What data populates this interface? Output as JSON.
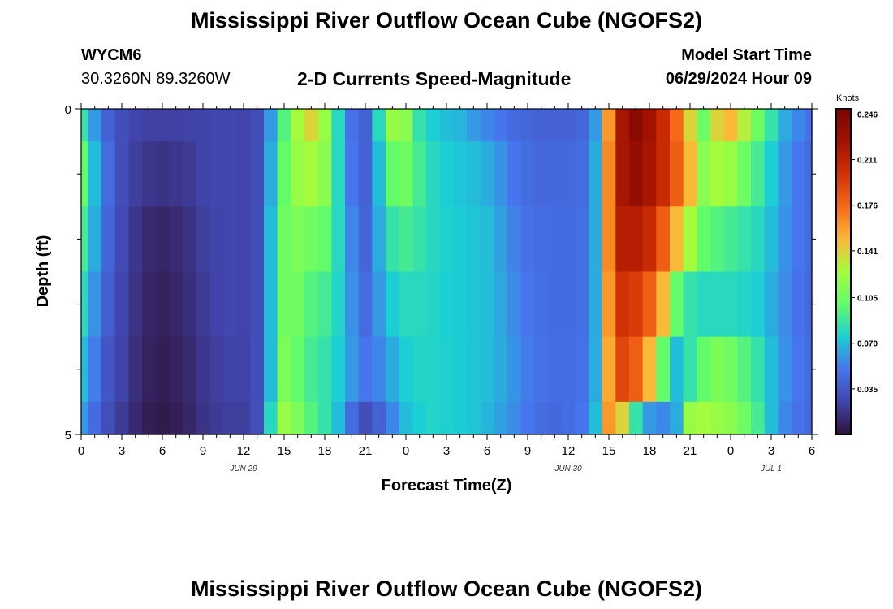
{
  "header": {
    "title": "Mississippi River Outflow Ocean Cube (NGOFS2)",
    "station_id": "WYCM6",
    "coordinates": "30.3260N  89.3260W",
    "subtitle": "2-D Currents Speed-Magnitude",
    "model_start_label": "Model Start Time",
    "model_start_value": "06/29/2024 Hour 09"
  },
  "footer": {
    "title": "Mississippi River Outflow Ocean Cube (NGOFS2)"
  },
  "chart_data": {
    "type": "heatmap",
    "title": "2-D Currents Speed-Magnitude",
    "xlabel": "Forecast Time(Z)",
    "ylabel": "Depth (ft)",
    "x_tick_labels": [
      "0",
      "3",
      "6",
      "9",
      "12",
      "15",
      "18",
      "21",
      "0",
      "3",
      "6",
      "9",
      "12",
      "15",
      "18",
      "21",
      "0",
      "3",
      "6"
    ],
    "date_labels": [
      "JUN 29",
      "JUN 30",
      "JUL 1"
    ],
    "y_tick_labels": [
      "0",
      "5"
    ],
    "ylim": [
      0,
      5
    ],
    "colorbar": {
      "unit": "Knots",
      "tick_labels": [
        "0.246",
        "0.211",
        "0.176",
        "0.141",
        "0.105",
        "0.070",
        "0.035"
      ],
      "range": [
        0,
        0.25
      ]
    },
    "x_hours": [
      0,
      1,
      2,
      3,
      4,
      5,
      6,
      7,
      8,
      9,
      10,
      11,
      12,
      13,
      14,
      15,
      16,
      17,
      18,
      19,
      20,
      21,
      22,
      23,
      24,
      25,
      26,
      27,
      28,
      29,
      30,
      31,
      32,
      33,
      34,
      35,
      36,
      37,
      38,
      39,
      40,
      41,
      42,
      43,
      44,
      45,
      46,
      47,
      48,
      49,
      50,
      51,
      52,
      53,
      54
    ],
    "depth_rows": [
      {
        "depth_range": [
          0.0,
          0.5
        ],
        "values": [
          0.085,
          0.06,
          0.04,
          0.03,
          0.025,
          0.023,
          0.023,
          0.023,
          0.024,
          0.025,
          0.026,
          0.026,
          0.025,
          0.03,
          0.06,
          0.095,
          0.125,
          0.14,
          0.12,
          0.08,
          0.048,
          0.04,
          0.08,
          0.12,
          0.115,
          0.085,
          0.075,
          0.07,
          0.068,
          0.06,
          0.055,
          0.05,
          0.045,
          0.042,
          0.04,
          0.04,
          0.04,
          0.042,
          0.06,
          0.16,
          0.222,
          0.24,
          0.225,
          0.205,
          0.175,
          0.14,
          0.105,
          0.14,
          0.15,
          0.13,
          0.105,
          0.085,
          0.065,
          0.055,
          0.048
        ]
      },
      {
        "depth_range": [
          0.5,
          1.5
        ],
        "values": [
          0.1,
          0.07,
          0.045,
          0.03,
          0.022,
          0.018,
          0.016,
          0.018,
          0.02,
          0.024,
          0.026,
          0.026,
          0.025,
          0.03,
          0.065,
          0.1,
          0.12,
          0.125,
          0.115,
          0.08,
          0.05,
          0.04,
          0.07,
          0.1,
          0.105,
          0.09,
          0.08,
          0.075,
          0.072,
          0.07,
          0.065,
          0.058,
          0.05,
          0.046,
          0.044,
          0.044,
          0.044,
          0.046,
          0.065,
          0.165,
          0.222,
          0.232,
          0.222,
          0.205,
          0.18,
          0.15,
          0.115,
          0.125,
          0.12,
          0.105,
          0.09,
          0.075,
          0.06,
          0.05,
          0.045
        ]
      },
      {
        "depth_range": [
          1.5,
          2.5
        ],
        "values": [
          0.09,
          0.065,
          0.042,
          0.028,
          0.018,
          0.012,
          0.01,
          0.012,
          0.016,
          0.022,
          0.025,
          0.026,
          0.025,
          0.03,
          0.07,
          0.105,
          0.11,
          0.105,
          0.1,
          0.08,
          0.055,
          0.042,
          0.065,
          0.085,
          0.09,
          0.085,
          0.08,
          0.076,
          0.074,
          0.072,
          0.07,
          0.062,
          0.054,
          0.048,
          0.046,
          0.045,
          0.045,
          0.047,
          0.065,
          0.165,
          0.215,
          0.215,
          0.205,
          0.18,
          0.15,
          0.125,
          0.1,
          0.095,
          0.09,
          0.085,
          0.08,
          0.07,
          0.058,
          0.05,
          0.045
        ]
      },
      {
        "depth_range": [
          2.5,
          3.5
        ],
        "values": [
          0.08,
          0.058,
          0.038,
          0.026,
          0.016,
          0.01,
          0.008,
          0.01,
          0.014,
          0.02,
          0.024,
          0.026,
          0.025,
          0.03,
          0.07,
          0.105,
          0.105,
          0.095,
          0.09,
          0.078,
          0.058,
          0.045,
          0.06,
          0.075,
          0.08,
          0.08,
          0.078,
          0.075,
          0.074,
          0.072,
          0.07,
          0.064,
          0.056,
          0.05,
          0.047,
          0.045,
          0.045,
          0.047,
          0.065,
          0.16,
          0.2,
          0.195,
          0.18,
          0.15,
          0.1,
          0.085,
          0.08,
          0.08,
          0.08,
          0.078,
          0.075,
          0.065,
          0.056,
          0.048,
          0.044
        ]
      },
      {
        "depth_range": [
          3.5,
          4.5
        ],
        "values": [
          0.07,
          0.052,
          0.034,
          0.024,
          0.014,
          0.008,
          0.006,
          0.008,
          0.012,
          0.018,
          0.022,
          0.024,
          0.024,
          0.03,
          0.07,
          0.11,
          0.1,
          0.09,
          0.085,
          0.075,
          0.06,
          0.05,
          0.055,
          0.065,
          0.075,
          0.078,
          0.078,
          0.076,
          0.074,
          0.072,
          0.07,
          0.065,
          0.058,
          0.052,
          0.048,
          0.046,
          0.046,
          0.048,
          0.065,
          0.155,
          0.19,
          0.18,
          0.15,
          0.1,
          0.07,
          0.085,
          0.1,
          0.11,
          0.105,
          0.095,
          0.085,
          0.07,
          0.058,
          0.05,
          0.045
        ]
      },
      {
        "depth_range": [
          4.5,
          5.0
        ],
        "values": [
          0.06,
          0.045,
          0.03,
          0.02,
          0.012,
          0.006,
          0.004,
          0.006,
          0.01,
          0.016,
          0.02,
          0.022,
          0.022,
          0.03,
          0.08,
          0.12,
          0.11,
          0.095,
          0.085,
          0.07,
          0.045,
          0.03,
          0.04,
          0.055,
          0.07,
          0.075,
          0.078,
          0.076,
          0.074,
          0.072,
          0.068,
          0.062,
          0.056,
          0.05,
          0.046,
          0.044,
          0.046,
          0.05,
          0.07,
          0.16,
          0.14,
          0.085,
          0.06,
          0.055,
          0.065,
          0.12,
          0.125,
          0.12,
          0.115,
          0.105,
          0.09,
          0.07,
          0.055,
          0.048,
          0.044
        ]
      }
    ]
  }
}
